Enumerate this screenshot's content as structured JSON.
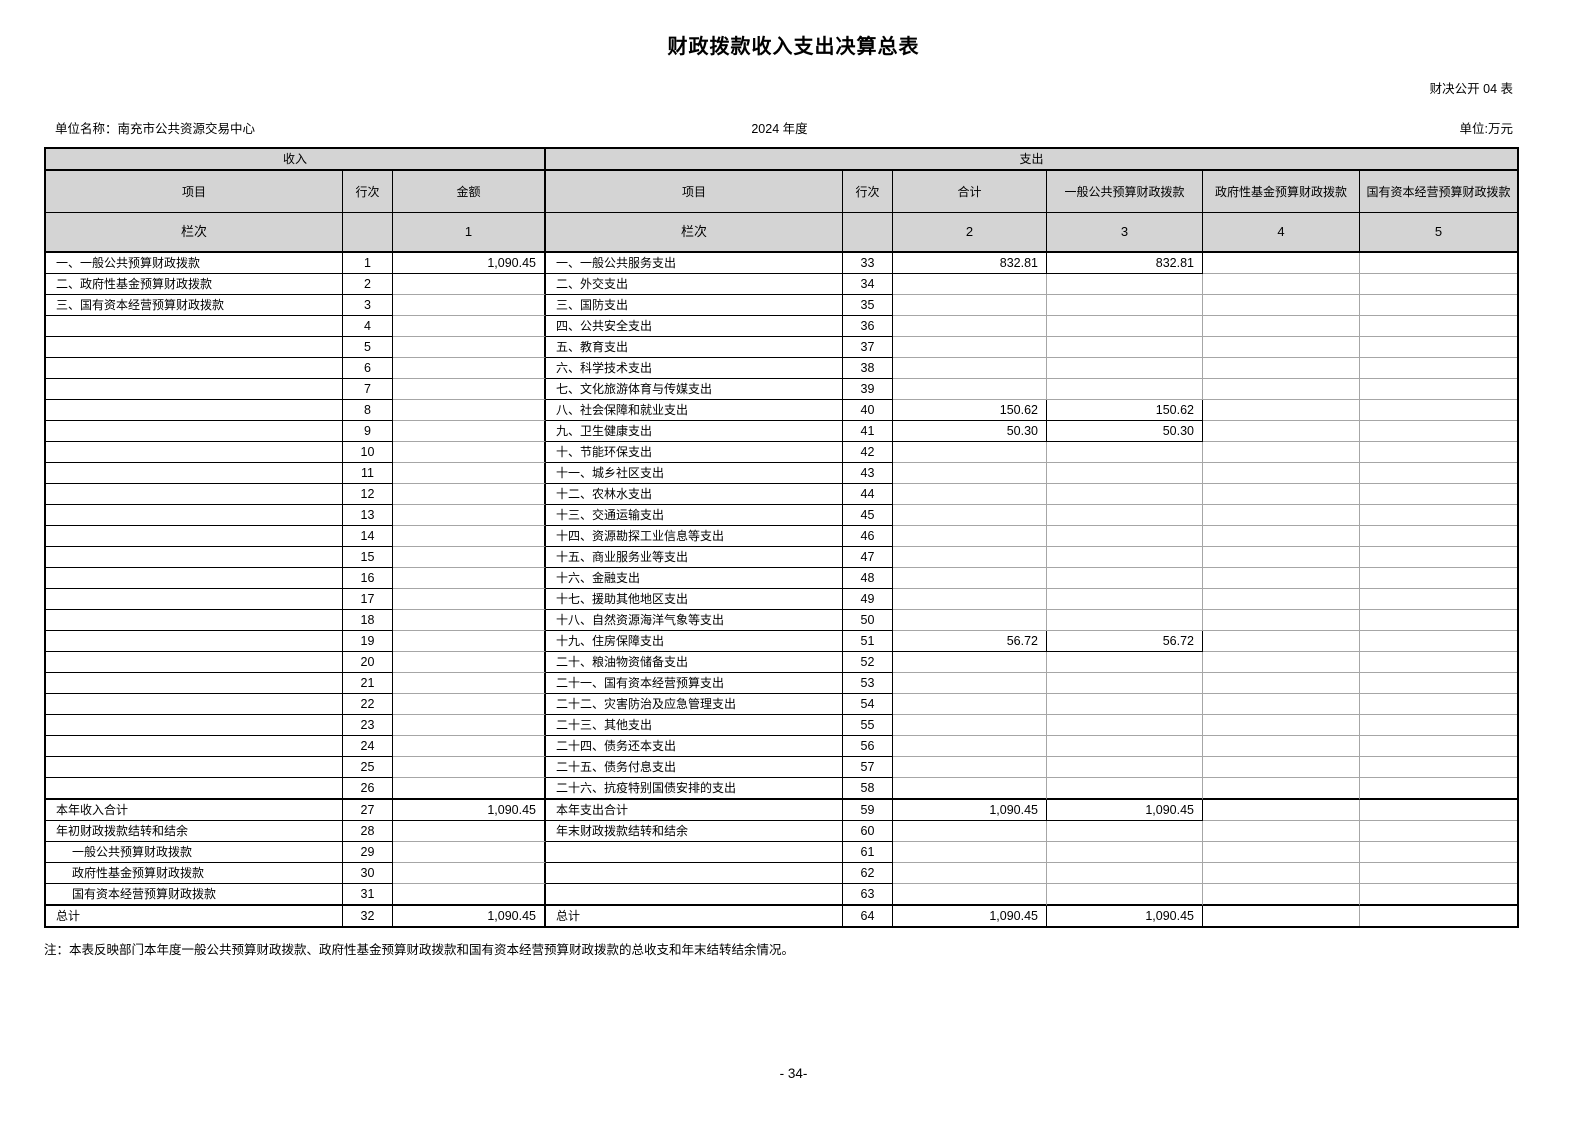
{
  "page": {
    "title": "财政拨款收入支出决算总表",
    "form_code": "财决公开 04 表",
    "unit_name": "单位名称：南充市公共资源交易中心",
    "year": "2024 年度",
    "unit_of_measure": "单位:万元",
    "note": "注：本表反映部门本年度一般公共预算财政拨款、政府性基金预算财政拨款和国有资本经营预算财政拨款的总收支和年末结转结余情况。",
    "page_number": "- 34-"
  },
  "colors": {
    "header_bg": "#d4d4d4",
    "grid_dark": "#000000",
    "grid_light": "#a6a6a6"
  },
  "table": {
    "sections": {
      "income": "收入",
      "expenditure": "支出"
    },
    "headers": {
      "item": "项目",
      "line_no": "行次",
      "amount": "金额",
      "total": "合计",
      "general_public": "一般公共预算财政拨款",
      "govt_fund": "政府性基金预算财政拨款",
      "state_capital": "国有资本经营预算财政拨款",
      "column_index_label": "栏次",
      "col_indexes": [
        "1",
        "2",
        "3",
        "4",
        "5"
      ]
    },
    "rows": [
      {
        "l": "一、一般公共预算财政拨款",
        "ln": "1",
        "lv": "1,090.45",
        "r": "一、一般公共服务支出",
        "rn": "33",
        "v2": "832.81",
        "v3": "832.81",
        "v4": "",
        "v5": ""
      },
      {
        "l": "二、政府性基金预算财政拨款",
        "ln": "2",
        "lv": "",
        "r": "二、外交支出",
        "rn": "34",
        "v2": "",
        "v3": "",
        "v4": "",
        "v5": ""
      },
      {
        "l": "三、国有资本经营预算财政拨款",
        "ln": "3",
        "lv": "",
        "r": "三、国防支出",
        "rn": "35",
        "v2": "",
        "v3": "",
        "v4": "",
        "v5": ""
      },
      {
        "l": "",
        "ln": "4",
        "lv": "",
        "r": "四、公共安全支出",
        "rn": "36",
        "v2": "",
        "v3": "",
        "v4": "",
        "v5": ""
      },
      {
        "l": "",
        "ln": "5",
        "lv": "",
        "r": "五、教育支出",
        "rn": "37",
        "v2": "",
        "v3": "",
        "v4": "",
        "v5": ""
      },
      {
        "l": "",
        "ln": "6",
        "lv": "",
        "r": "六、科学技术支出",
        "rn": "38",
        "v2": "",
        "v3": "",
        "v4": "",
        "v5": ""
      },
      {
        "l": "",
        "ln": "7",
        "lv": "",
        "r": "七、文化旅游体育与传媒支出",
        "rn": "39",
        "v2": "",
        "v3": "",
        "v4": "",
        "v5": ""
      },
      {
        "l": "",
        "ln": "8",
        "lv": "",
        "r": "八、社会保障和就业支出",
        "rn": "40",
        "v2": "150.62",
        "v3": "150.62",
        "v4": "",
        "v5": ""
      },
      {
        "l": "",
        "ln": "9",
        "lv": "",
        "r": "九、卫生健康支出",
        "rn": "41",
        "v2": "50.30",
        "v3": "50.30",
        "v4": "",
        "v5": ""
      },
      {
        "l": "",
        "ln": "10",
        "lv": "",
        "r": "十、节能环保支出",
        "rn": "42",
        "v2": "",
        "v3": "",
        "v4": "",
        "v5": ""
      },
      {
        "l": "",
        "ln": "11",
        "lv": "",
        "r": "十一、城乡社区支出",
        "rn": "43",
        "v2": "",
        "v3": "",
        "v4": "",
        "v5": ""
      },
      {
        "l": "",
        "ln": "12",
        "lv": "",
        "r": "十二、农林水支出",
        "rn": "44",
        "v2": "",
        "v3": "",
        "v4": "",
        "v5": ""
      },
      {
        "l": "",
        "ln": "13",
        "lv": "",
        "r": "十三、交通运输支出",
        "rn": "45",
        "v2": "",
        "v3": "",
        "v4": "",
        "v5": ""
      },
      {
        "l": "",
        "ln": "14",
        "lv": "",
        "r": "十四、资源勘探工业信息等支出",
        "rn": "46",
        "v2": "",
        "v3": "",
        "v4": "",
        "v5": ""
      },
      {
        "l": "",
        "ln": "15",
        "lv": "",
        "r": "十五、商业服务业等支出",
        "rn": "47",
        "v2": "",
        "v3": "",
        "v4": "",
        "v5": ""
      },
      {
        "l": "",
        "ln": "16",
        "lv": "",
        "r": "十六、金融支出",
        "rn": "48",
        "v2": "",
        "v3": "",
        "v4": "",
        "v5": ""
      },
      {
        "l": "",
        "ln": "17",
        "lv": "",
        "r": "十七、援助其他地区支出",
        "rn": "49",
        "v2": "",
        "v3": "",
        "v4": "",
        "v5": ""
      },
      {
        "l": "",
        "ln": "18",
        "lv": "",
        "r": "十八、自然资源海洋气象等支出",
        "rn": "50",
        "v2": "",
        "v3": "",
        "v4": "",
        "v5": ""
      },
      {
        "l": "",
        "ln": "19",
        "lv": "",
        "r": "十九、住房保障支出",
        "rn": "51",
        "v2": "56.72",
        "v3": "56.72",
        "v4": "",
        "v5": ""
      },
      {
        "l": "",
        "ln": "20",
        "lv": "",
        "r": "二十、粮油物资储备支出",
        "rn": "52",
        "v2": "",
        "v3": "",
        "v4": "",
        "v5": ""
      },
      {
        "l": "",
        "ln": "21",
        "lv": "",
        "r": "二十一、国有资本经营预算支出",
        "rn": "53",
        "v2": "",
        "v3": "",
        "v4": "",
        "v5": ""
      },
      {
        "l": "",
        "ln": "22",
        "lv": "",
        "r": "二十二、灾害防治及应急管理支出",
        "rn": "54",
        "v2": "",
        "v3": "",
        "v4": "",
        "v5": ""
      },
      {
        "l": "",
        "ln": "23",
        "lv": "",
        "r": "二十三、其他支出",
        "rn": "55",
        "v2": "",
        "v3": "",
        "v4": "",
        "v5": ""
      },
      {
        "l": "",
        "ln": "24",
        "lv": "",
        "r": "二十四、债务还本支出",
        "rn": "56",
        "v2": "",
        "v3": "",
        "v4": "",
        "v5": ""
      },
      {
        "l": "",
        "ln": "25",
        "lv": "",
        "r": "二十五、债务付息支出",
        "rn": "57",
        "v2": "",
        "v3": "",
        "v4": "",
        "v5": ""
      },
      {
        "l": "",
        "ln": "26",
        "lv": "",
        "r": "二十六、抗疫特别国债安排的支出",
        "rn": "58",
        "v2": "",
        "v3": "",
        "v4": "",
        "v5": "",
        "tb": true
      },
      {
        "l": "本年收入合计",
        "ln": "27",
        "lv": "1,090.45",
        "r": "本年支出合计",
        "rn": "59",
        "v2": "1,090.45",
        "v3": "1,090.45",
        "v4": "",
        "v5": ""
      },
      {
        "l": "年初财政拨款结转和结余",
        "ln": "28",
        "lv": "",
        "r": "年末财政拨款结转和结余",
        "rn": "60",
        "v2": "",
        "v3": "",
        "v4": "",
        "v5": ""
      },
      {
        "l": "一般公共预算财政拨款",
        "sub": true,
        "ln": "29",
        "lv": "",
        "r": "",
        "rn": "61",
        "v2": "",
        "v3": "",
        "v4": "",
        "v5": ""
      },
      {
        "l": "政府性基金预算财政拨款",
        "sub": true,
        "ln": "30",
        "lv": "",
        "r": "",
        "rn": "62",
        "v2": "",
        "v3": "",
        "v4": "",
        "v5": ""
      },
      {
        "l": "国有资本经营预算财政拨款",
        "sub": true,
        "ln": "31",
        "lv": "",
        "r": "",
        "rn": "63",
        "v2": "",
        "v3": "",
        "v4": "",
        "v5": "",
        "tb": true
      },
      {
        "l": "总计",
        "ln": "32",
        "lv": "1,090.45",
        "r": "总计",
        "rn": "64",
        "v2": "1,090.45",
        "v3": "1,090.45",
        "v4": "",
        "v5": ""
      }
    ]
  }
}
